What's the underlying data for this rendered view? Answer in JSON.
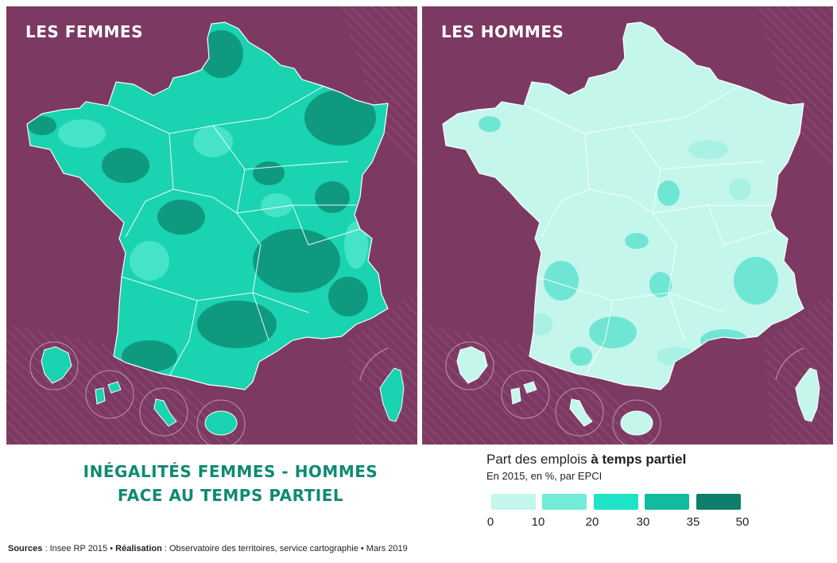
{
  "panels": {
    "left": {
      "title": "LES FEMMES",
      "fill": "#1ad3b0",
      "dark": "#0f9a80",
      "light": "#45e3c8"
    },
    "right": {
      "title": "LES HOMMES",
      "fill": "#c4f6ec",
      "dark": "#6fe6d3",
      "light": "#a8f1e4"
    }
  },
  "title": {
    "line1": "INÉGALITÉS FEMMES - HOMMES",
    "line2": "FACE AU TEMPS PARTIEL"
  },
  "legend": {
    "title_prefix": "Part des emplois ",
    "title_bold": "à temps partiel",
    "subtitle": "En 2015, en %, par EPCI",
    "classes": [
      {
        "color": "#c3f6ec"
      },
      {
        "color": "#72ecd8"
      },
      {
        "color": "#1ee3c6"
      },
      {
        "color": "#12bb9e"
      },
      {
        "color": "#0d7f6b"
      }
    ],
    "ticks": [
      "0",
      "10",
      "20",
      "30",
      "35",
      "50"
    ]
  },
  "sources": {
    "label1": "Sources",
    "text1": " : Insee RP 2015 • ",
    "label2": "Réalisation",
    "text2": " : Observatoire des territoires, service cartographie • Mars 2019"
  },
  "colors": {
    "background": "#7c3a62",
    "title": "#0f8a73"
  }
}
